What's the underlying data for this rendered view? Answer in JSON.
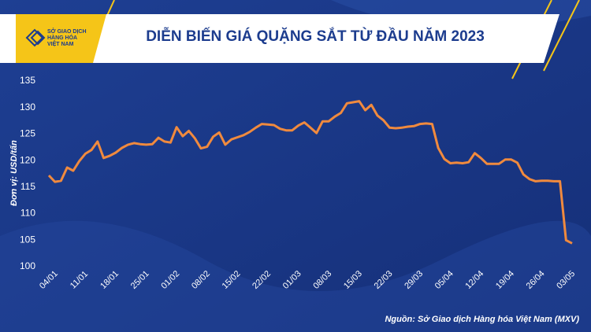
{
  "chart_data": {
    "type": "line",
    "title": "DIỄN BIẾN GIÁ QUẶNG SẮT TỪ ĐẦU NĂM 2023",
    "logo_lines": [
      "SỞ GIAO DỊCH",
      "HÀNG HÓA",
      "VIỆT NAM"
    ],
    "ylabel": "Đơn vị: USD/tấn",
    "source": "Nguồn: Sở Giao dịch Hàng hóa Việt Nam (MXV)",
    "categories": [
      "04/01",
      null,
      null,
      null,
      null,
      "11/01",
      null,
      null,
      null,
      null,
      "18/01",
      null,
      null,
      null,
      null,
      "25/01",
      null,
      null,
      null,
      null,
      "01/02",
      null,
      null,
      null,
      null,
      "08/02",
      null,
      null,
      null,
      null,
      "15/02",
      null,
      null,
      null,
      null,
      "22/02",
      null,
      null,
      null,
      null,
      "01/03",
      null,
      null,
      null,
      null,
      "08/03",
      null,
      null,
      null,
      null,
      "15/03",
      null,
      null,
      null,
      null,
      "22/03",
      null,
      null,
      null,
      null,
      "29/03",
      null,
      null,
      null,
      null,
      "05/04",
      null,
      null,
      null,
      null,
      "12/04",
      null,
      null,
      null,
      null,
      "19/04",
      null,
      null,
      null,
      null,
      "26/04",
      null,
      null,
      null,
      null,
      "03/05",
      null
    ],
    "values": [
      117.2,
      116,
      116.2,
      118.7,
      118.1,
      119.9,
      121.3,
      122,
      123.6,
      120.5,
      120.9,
      121.5,
      122.4,
      123,
      123.3,
      123.1,
      123,
      123.1,
      124.3,
      123.6,
      123.4,
      126.3,
      124.6,
      125.6,
      124.2,
      122.3,
      122.6,
      124.5,
      125.3,
      123,
      124,
      124.4,
      124.8,
      125.4,
      126.2,
      126.9,
      126.8,
      126.7,
      126,
      125.7,
      125.7,
      126.6,
      127.2,
      126.2,
      125.2,
      127.4,
      127.4,
      128.3,
      129,
      130.8,
      131,
      131.2,
      129.5,
      130.5,
      128.5,
      127.6,
      126.2,
      126.1,
      126.2,
      126.4,
      126.5,
      126.9,
      127,
      126.9,
      122.4,
      120.3,
      119.5,
      119.6,
      119.5,
      119.7,
      121.4,
      120.5,
      119.4,
      119.4,
      119.4,
      120.2,
      120.2,
      119.6,
      117.4,
      116.5,
      116.1,
      116.2,
      116.2,
      116.1,
      116.1,
      105,
      104.4
    ],
    "color": "#f08a3e",
    "ylim": [
      100,
      135
    ],
    "yticks": [
      100,
      105,
      110,
      115,
      120,
      125,
      130,
      135
    ],
    "grid": false
  }
}
